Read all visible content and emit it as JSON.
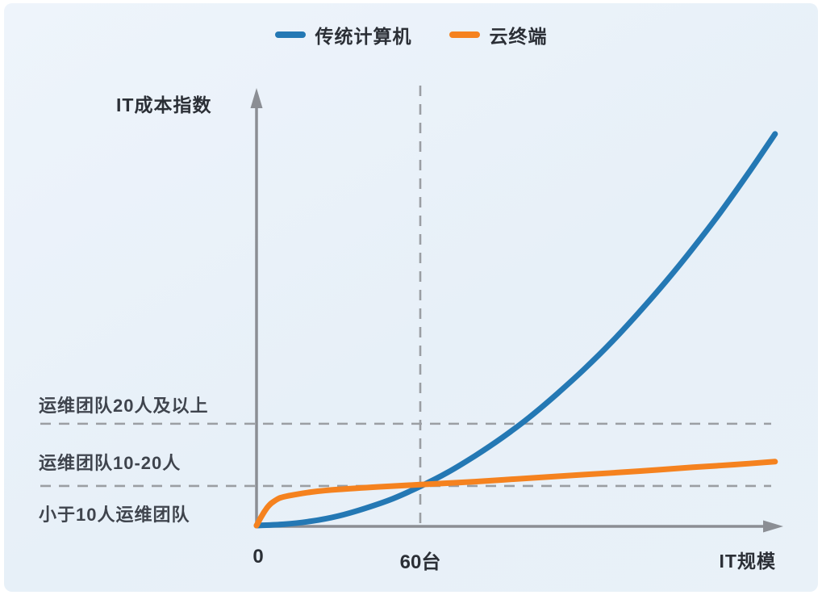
{
  "legend": {
    "items": [
      {
        "label": "传统计算机",
        "color": "#2478b4"
      },
      {
        "label": "云终端",
        "color": "#f5821f"
      }
    ]
  },
  "chart_data": {
    "type": "line",
    "title": "",
    "xlabel": "IT规模",
    "ylabel": "IT成本指数",
    "xlim": [
      0,
      193
    ],
    "ylim": [
      0,
      100
    ],
    "grid": false,
    "legend_position": "top-center",
    "x_ticks": [
      {
        "value": 0,
        "label": "0"
      },
      {
        "value": 60,
        "label": "60台"
      }
    ],
    "series": [
      {
        "name": "传统计算机",
        "color": "#2478b4",
        "x": [
          0,
          10,
          20,
          30,
          40,
          50,
          60,
          70,
          80,
          90,
          100,
          110,
          120,
          130,
          140,
          150,
          160,
          170,
          180,
          190
        ],
        "y": [
          0,
          0.3,
          1.0,
          2.2,
          4.0,
          6.2,
          9.0,
          12.2,
          16.0,
          20.2,
          24.9,
          30.2,
          35.9,
          42.1,
          48.9,
          56.1,
          63.8,
          72.0,
          80.8,
          90.0
        ]
      },
      {
        "name": "云终端",
        "color": "#f5821f",
        "x": [
          0,
          1,
          2,
          3,
          4,
          5,
          6,
          8,
          10,
          14,
          20,
          30,
          45,
          60,
          80,
          100,
          120,
          140,
          160,
          175,
          190
        ],
        "y": [
          0,
          1.2,
          2.3,
          3.3,
          4.2,
          4.9,
          5.4,
          6.2,
          6.6,
          7.1,
          7.7,
          8.3,
          8.9,
          9.4,
          10.1,
          10.9,
          11.7,
          12.5,
          13.4,
          14.0,
          14.7
        ]
      }
    ],
    "vline_x": 60,
    "annotations": [
      {
        "label": "运维团队20人及以上",
        "line_at_y": 23.4
      },
      {
        "label": "运维团队10-20人",
        "line_at_y": 9.1
      },
      {
        "label": "小于10人运维团队",
        "line_at_y": null
      }
    ],
    "crossover": {
      "x": 60,
      "y": 9.2,
      "note": "blue and orange curves intersect at the 60台 dashed line"
    }
  },
  "colors": {
    "axis": "#8b8e94",
    "dashed_line": "#9b9ea3",
    "background": "#e9f1f8",
    "text_dark": "#2b2f36",
    "text_region": "#3f444d"
  }
}
